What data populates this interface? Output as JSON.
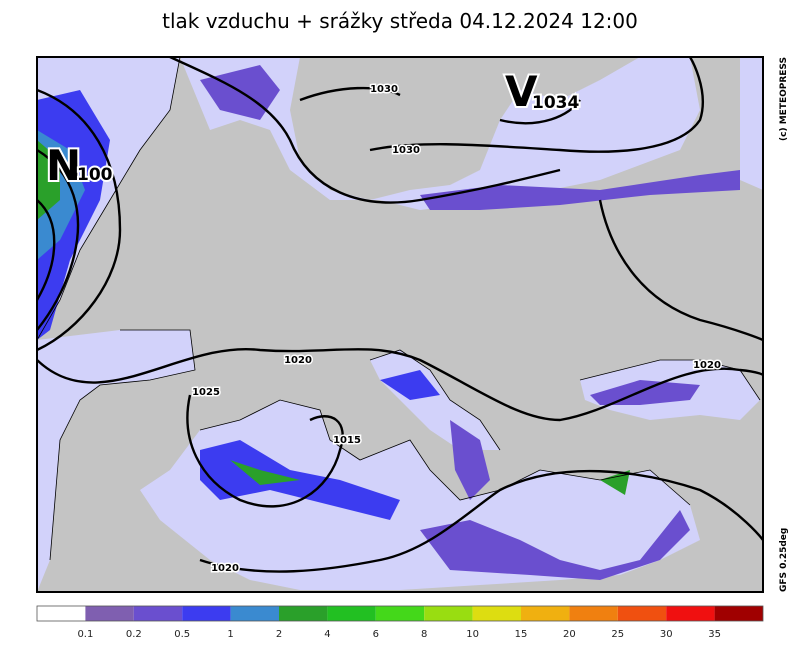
{
  "header": {
    "title": "tlak vzduchu + srážky  středa 04.12.2024 12:00"
  },
  "side_texts": {
    "copyright": "(c) METEOPRESS",
    "model": "GFS 0.25deg"
  },
  "pressure_centers": [
    {
      "letter": "V",
      "value": "1034"
    },
    {
      "letter": "N",
      "value": "100"
    }
  ],
  "isobar_labels": [
    "1030",
    "1030",
    "1020",
    "1025",
    "1015",
    "1020",
    "1020"
  ],
  "legend": {
    "labels": [
      "0.1",
      "0.2",
      "0.5",
      "1",
      "2",
      "4",
      "6",
      "8",
      "10",
      "15",
      "20",
      "25",
      "30",
      "35"
    ],
    "colors": [
      "#ffffff",
      "#7f5fb0",
      "#6a4fcf",
      "#3c3cf0",
      "#3a8ad0",
      "#2aa02a",
      "#22c022",
      "#44d81a",
      "#99dd11",
      "#dddd11",
      "#f0b010",
      "#f08010",
      "#f05010",
      "#f01010",
      "#a00000"
    ]
  }
}
